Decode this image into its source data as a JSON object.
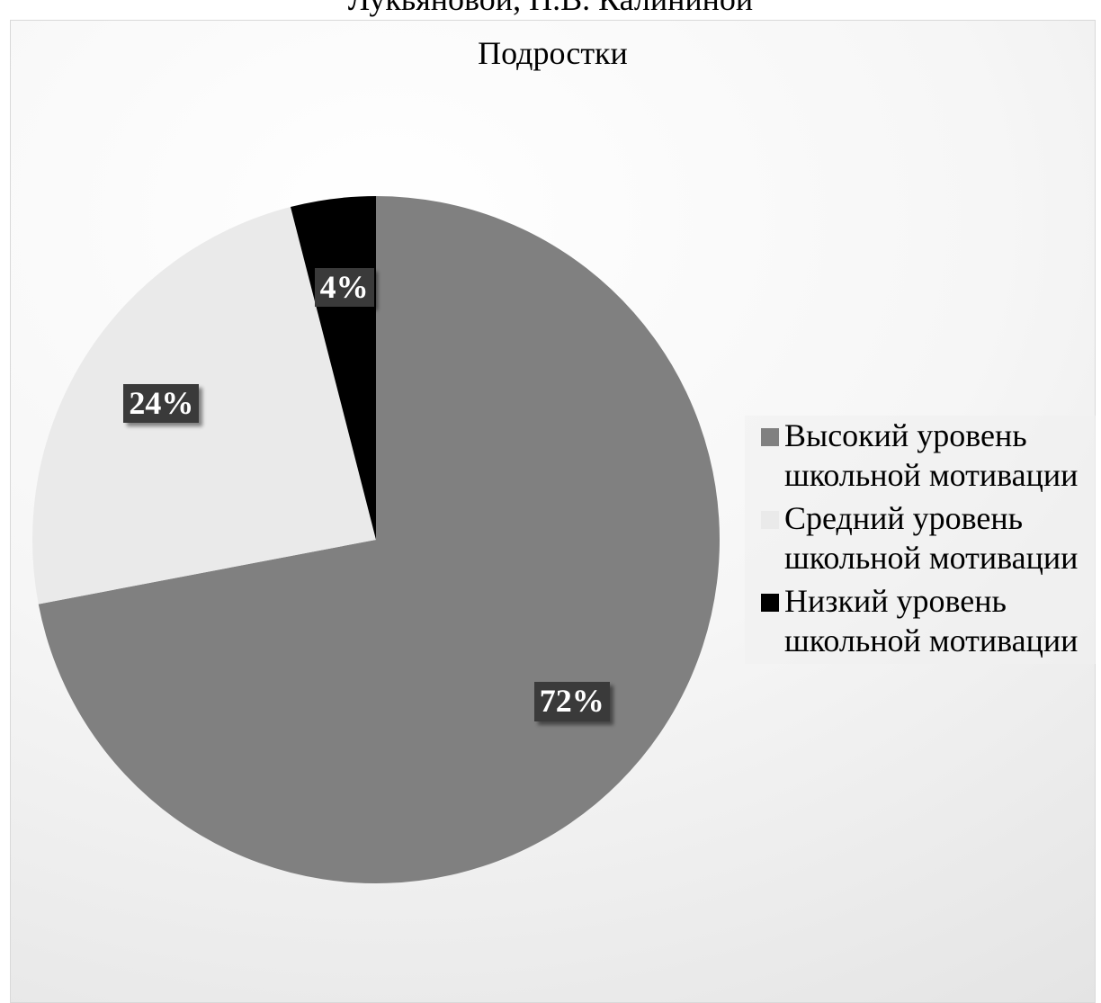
{
  "header": {
    "top_text": "Лукьяновой, Н.В. Калининой"
  },
  "chart_data": {
    "type": "pie",
    "title": "Подростки",
    "slices": [
      {
        "name": "Высокий уровень школьной мотивации",
        "value": 72,
        "label": "72%",
        "color": "#808080"
      },
      {
        "name": "Средний уровень школьной мотивации",
        "value": 24,
        "label": "24%",
        "color": "#eaeaea"
      },
      {
        "name": "Низкий уровень школьной мотивации",
        "value": 4,
        "label": "4%",
        "color": "#000000"
      }
    ],
    "legend_position": "right",
    "labels": {
      "background": "#3a3a3a",
      "color": "#ffffff"
    }
  }
}
